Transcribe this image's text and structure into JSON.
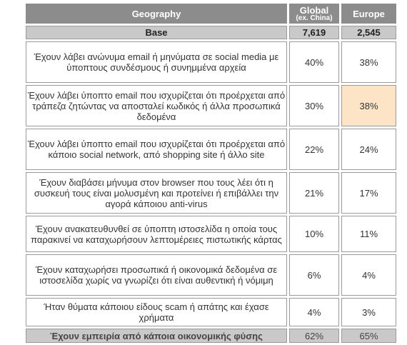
{
  "header": {
    "geography": "Geography",
    "global": "Global",
    "global_sub": "(ex. China)",
    "europe": "Europe"
  },
  "base": {
    "label": "Base",
    "global": "7,619",
    "europe": "2,545"
  },
  "rows": [
    {
      "text": "Έχουν λάβει ανώνυμα email ή μηνύματα σε social media με ύποπτους συνδέσμους ή συνημμένα αρχεία",
      "global": "40%",
      "europe": "38%"
    },
    {
      "text": "Έχουν λάβει ύποπτο email που ισχυρίζεται ότι προέρχεται από τράπεζα ζητώντας να αποσταλεί κωδικός ή άλλα προσωπικά δεδομένα",
      "global": "30%",
      "europe": "38%"
    },
    {
      "text": "Έχουν λάβει ύποπτο email που ισχυρίζεται ότι προέρχεται από κάποιο social network, από shopping site ή άλλο site",
      "global": "22%",
      "europe": "24%"
    },
    {
      "text": "Έχουν διαβάσει μήνυμα στον browser που τους λέει ότι η συσκευή τους είναι μολυσμένη και προτείνει ή επιβάλλει την αγορά κάποιου anti-virus",
      "global": "21%",
      "europe": "17%"
    },
    {
      "text": "Έχουν ανακατευθυνθεί σε ύποπτη ιστοσελίδα η οποία τους παρακινεί να καταχωρήσουν λεπτομέρειες πιστωτικής κάρτας",
      "global": "10%",
      "europe": "11%"
    },
    {
      "text": "Έχουν καταχωρήσει προσωπικά ή οικονομικά δεδομένα σε ιστοσελίδα χωρίς να γνωρίζει ότι είναι αυθεντική ή νόμιμη",
      "global": "6%",
      "europe": "4%"
    },
    {
      "text": "Ήταν θύματα κάποιου είδους scam ή απάτης και έχασε χρήματα",
      "global": "4%",
      "europe": "3%"
    }
  ],
  "footer": {
    "label": "Έχουν εμπειρία από κάποια οικονομικής φύσης",
    "global": "62%",
    "europe": "65%"
  },
  "colors": {
    "header_bg": "#8c8c8c",
    "base_bg": "#c9c9c9",
    "highlight": "#fde4c6"
  }
}
